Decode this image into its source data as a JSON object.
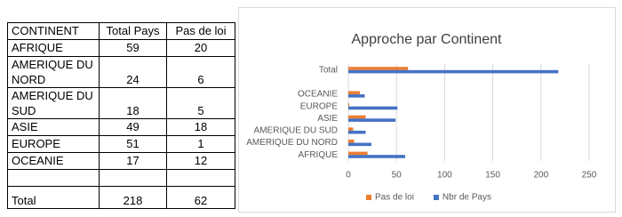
{
  "table": {
    "header": [
      "CONTINENT",
      "Total Pays",
      "Pas de loi"
    ],
    "rows": [
      [
        "AFRIQUE",
        59,
        20
      ],
      [
        "AMERIQUE DU NORD",
        24,
        6
      ],
      [
        "AMERIQUE DU SUD",
        18,
        5
      ],
      [
        "ASIE",
        49,
        18
      ],
      [
        "EUROPE",
        51,
        1
      ],
      [
        "OCEANIE",
        17,
        12
      ]
    ],
    "total": [
      "Total",
      218,
      62
    ]
  },
  "chart_data": {
    "type": "barh",
    "title": "Approche par Continent",
    "categories": [
      "AFRIQUE",
      "AMERIQUE DU NORD",
      "AMERIQUE DU SUD",
      "ASIE",
      "EUROPE",
      "OCEANIE",
      null,
      "Total"
    ],
    "series": [
      {
        "name": "Pas de loi",
        "color": "#ed7d31",
        "values": [
          20,
          6,
          5,
          18,
          1,
          12,
          null,
          62
        ]
      },
      {
        "name": "Nbr de Pays",
        "color": "#4472c4",
        "values": [
          59,
          24,
          18,
          49,
          51,
          17,
          null,
          218
        ]
      }
    ],
    "xlim": [
      0,
      250
    ],
    "xticks": [
      0,
      50,
      100,
      150,
      200,
      250
    ],
    "grid": true,
    "legend": "bottom"
  }
}
